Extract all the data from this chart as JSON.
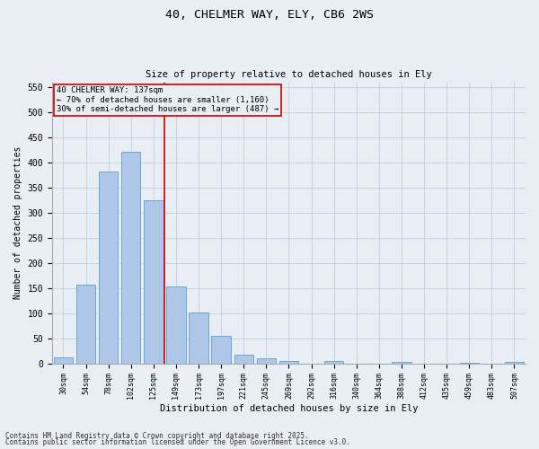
{
  "title1": "40, CHELMER WAY, ELY, CB6 2WS",
  "title2": "Size of property relative to detached houses in Ely",
  "xlabel": "Distribution of detached houses by size in Ely",
  "ylabel": "Number of detached properties",
  "categories": [
    "30sqm",
    "54sqm",
    "78sqm",
    "102sqm",
    "125sqm",
    "149sqm",
    "173sqm",
    "197sqm",
    "221sqm",
    "245sqm",
    "269sqm",
    "292sqm",
    "316sqm",
    "340sqm",
    "364sqm",
    "388sqm",
    "412sqm",
    "435sqm",
    "459sqm",
    "483sqm",
    "507sqm"
  ],
  "values": [
    12,
    157,
    383,
    421,
    325,
    153,
    102,
    55,
    18,
    11,
    5,
    0,
    4,
    0,
    0,
    3,
    0,
    0,
    2,
    0,
    3
  ],
  "bar_color": "#aec6e8",
  "bar_edge_color": "#5a9fd4",
  "background_color": "#e8eef4",
  "vline_x": 4.5,
  "vline_color": "#cc0000",
  "annotation_text": "40 CHELMER WAY: 137sqm\n← 70% of detached houses are smaller (1,160)\n30% of semi-detached houses are larger (487) →",
  "annotation_box_color": "#cc0000",
  "ylim": [
    0,
    560
  ],
  "yticks": [
    0,
    50,
    100,
    150,
    200,
    250,
    300,
    350,
    400,
    450,
    500,
    550
  ],
  "footer1": "Contains HM Land Registry data © Crown copyright and database right 2025.",
  "footer2": "Contains public sector information licensed under the Open Government Licence v3.0.",
  "figsize": [
    6.0,
    5.0
  ],
  "dpi": 100
}
